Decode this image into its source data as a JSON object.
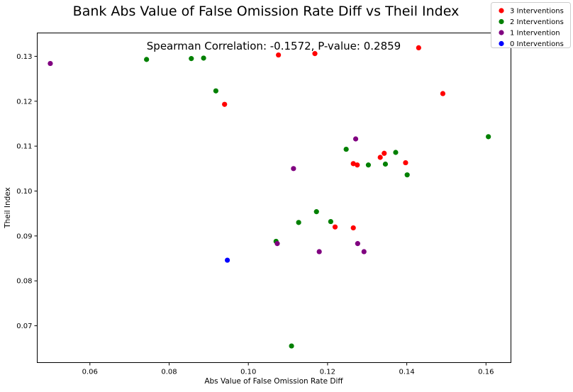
{
  "chart_data": {
    "type": "scatter",
    "title": "Bank Abs Value of False Omission Rate Diff vs Theil Index",
    "subtitle": "Spearman Correlation: -0.1572, P-value: 0.2859",
    "xlabel": "Abs Value of False Omission Rate Diff",
    "ylabel": "Theil Index",
    "xlim": [
      0.0467,
      0.1663
    ],
    "ylim": [
      0.0618,
      0.1352
    ],
    "x_ticks": [
      0.06,
      0.08,
      0.1,
      0.12,
      0.14,
      0.16
    ],
    "x_tick_labels": [
      "0.06",
      "0.08",
      "0.10",
      "0.12",
      "0.14",
      "0.16"
    ],
    "y_ticks": [
      0.07,
      0.08,
      0.09,
      0.1,
      0.11,
      0.12,
      0.13
    ],
    "y_tick_labels": [
      "0.07",
      "0.08",
      "0.09",
      "0.10",
      "0.11",
      "0.12",
      "0.13"
    ],
    "grid": false,
    "legend_position": "top-right",
    "series": [
      {
        "name": "3 Interventions",
        "color": "#ff0000",
        "points": [
          [
            0.1076,
            0.1303
          ],
          [
            0.1168,
            0.1306
          ],
          [
            0.143,
            0.1319
          ],
          [
            0.1491,
            0.1217
          ],
          [
            0.094,
            0.1193
          ],
          [
            0.1343,
            0.1084
          ],
          [
            0.1333,
            0.1075
          ],
          [
            0.1397,
            0.1063
          ],
          [
            0.1265,
            0.1061
          ],
          [
            0.1275,
            0.1058
          ],
          [
            0.1219,
            0.092
          ],
          [
            0.1265,
            0.0918
          ]
        ]
      },
      {
        "name": "2 Interventions",
        "color": "#008000",
        "points": [
          [
            0.0743,
            0.1293
          ],
          [
            0.0856,
            0.1295
          ],
          [
            0.0887,
            0.1296
          ],
          [
            0.0918,
            0.1223
          ],
          [
            0.1606,
            0.1121
          ],
          [
            0.1247,
            0.1093
          ],
          [
            0.1372,
            0.1086
          ],
          [
            0.1303,
            0.1058
          ],
          [
            0.1346,
            0.106
          ],
          [
            0.1401,
            0.1036
          ],
          [
            0.1172,
            0.0954
          ],
          [
            0.1208,
            0.0932
          ],
          [
            0.1127,
            0.093
          ],
          [
            0.107,
            0.0888
          ],
          [
            0.1109,
            0.0655
          ]
        ]
      },
      {
        "name": "1 Intervention",
        "color": "#800080",
        "points": [
          [
            0.05,
            0.1284
          ],
          [
            0.1271,
            0.1116
          ],
          [
            0.1114,
            0.105
          ],
          [
            0.1073,
            0.0883
          ],
          [
            0.1179,
            0.0865
          ],
          [
            0.1276,
            0.0883
          ],
          [
            0.1292,
            0.0865
          ]
        ]
      },
      {
        "name": "0 Interventions",
        "color": "#0000ff",
        "points": [
          [
            0.0947,
            0.0846
          ]
        ]
      }
    ]
  }
}
